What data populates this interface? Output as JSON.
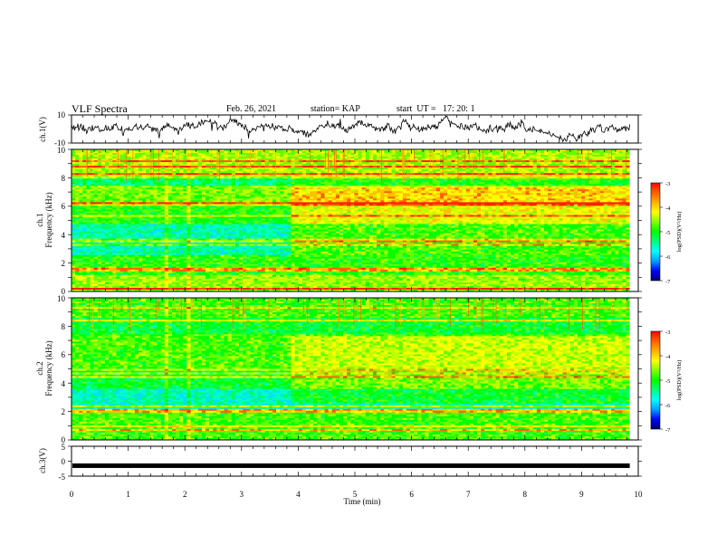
{
  "header": {
    "title": "VLF Spectra",
    "date": "Feb. 26, 2021",
    "station": "station= KAP",
    "start": "start  UT =   17: 20: 1"
  },
  "colors": {
    "colormap": [
      "#000070",
      "#0000ff",
      "#00a0ff",
      "#00ffff",
      "#00ff80",
      "#00ff00",
      "#80ff00",
      "#ffff00",
      "#ffb000",
      "#ff6000",
      "#ff0000",
      "#ffffff"
    ],
    "trace": "#000000"
  },
  "chart_data": [
    {
      "type": "line",
      "panel": "ch1-waveform",
      "ylabel": "ch.1(V)",
      "ylim": [
        -10,
        10
      ],
      "yticks": [
        "10",
        "-10"
      ],
      "x_range_min": [
        0,
        9.85
      ],
      "description_values": "broadband noise fluctuating roughly between -6 and +8 V"
    },
    {
      "type": "heatmap",
      "panel": "ch1-spectrogram",
      "ylabel_line1": "ch.1",
      "ylabel_line2": "Frequency (kHz)",
      "ylim": [
        0,
        10
      ],
      "yticks": [
        "0",
        "2",
        "4",
        "6",
        "8",
        "10"
      ],
      "x_range_min": [
        0,
        9.85
      ],
      "colorbar": {
        "label": "log(PSD)(V²/Hz)",
        "range": [
          -7,
          -3
        ],
        "ticks": [
          "-3",
          "-4",
          "-5",
          "-6",
          "-7"
        ]
      }
    },
    {
      "type": "heatmap",
      "panel": "ch2-spectrogram",
      "ylabel_line1": "ch.2",
      "ylabel_line2": "Frequency (kHz)",
      "ylim": [
        0,
        10
      ],
      "yticks": [
        "0",
        "2",
        "4",
        "6",
        "8",
        "10"
      ],
      "x_range_min": [
        0,
        9.85
      ],
      "colorbar": {
        "label": "log(PSD)(V²/Hz)",
        "range": [
          -7,
          -3
        ],
        "ticks": [
          "-3",
          "-4",
          "-5",
          "-6",
          "-7"
        ]
      }
    },
    {
      "type": "line",
      "panel": "ch3-waveform",
      "ylabel": "ch.3(V)",
      "ylim": [
        -5,
        5
      ],
      "yticks": [
        "5",
        "0",
        "-5"
      ],
      "x_range_min": [
        0,
        9.85
      ],
      "baseline_value": -1.5
    }
  ],
  "xaxis": {
    "label": "Time (min)",
    "ticks": [
      "0",
      "1",
      "2",
      "3",
      "4",
      "5",
      "6",
      "7",
      "8",
      "9",
      "10"
    ],
    "range": [
      0,
      10
    ]
  }
}
